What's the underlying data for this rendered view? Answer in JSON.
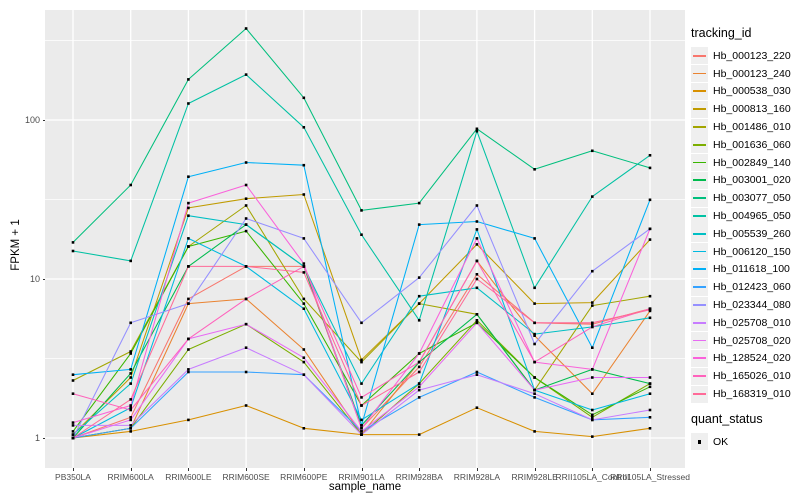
{
  "labels": {
    "y_axis_title": "FPKM + 1",
    "x_axis_title": "sample_name",
    "tracking_legend_title": "tracking_id",
    "quant_legend_title": "quant_status",
    "quant_status_value": "OK"
  },
  "colors": {
    "panel_bg": "#EBEBEB",
    "grid": "#FFFFFF",
    "axis_text": "#4D4D4D",
    "tick_mark": "#333333",
    "point": "#000000",
    "legend_key_bg": "#EFEFEF"
  },
  "chart_data": {
    "type": "line",
    "title": "",
    "xlabel": "sample_name",
    "ylabel": "FPKM + 1",
    "y_scale": "log10",
    "ylim": [
      1,
      470
    ],
    "y_ticks": [
      1,
      10,
      100
    ],
    "y_tick_labels": [
      "1",
      "10",
      "100"
    ],
    "y_minor_gridlines": [
      3.162,
      31.62,
      316.2
    ],
    "grid": "on",
    "legend_position": "right",
    "point_marker": "black-square",
    "categories": [
      "PB350LA",
      "RRIM600LA",
      "RRIM600LE",
      "RRIM600SE",
      "RRIM600PE",
      "RRIM901LA",
      "RRIM928BA",
      "RRIM928LA",
      "RRIM928LE",
      "RRII105LA_Control",
      "RRII105LA_Stressed"
    ],
    "series": [
      {
        "name": "Hb_000123_220",
        "color": "#F8766D",
        "values": [
          1.0,
          1.35,
          7.5,
          12,
          12,
          1.15,
          2.8,
          10.7,
          5.3,
          5.2,
          6.5
        ]
      },
      {
        "name": "Hb_000123_240",
        "color": "#EA8331",
        "values": [
          1.0,
          1.15,
          7.0,
          7.5,
          3.6,
          1.05,
          3.0,
          13,
          4.4,
          1.9,
          6.3
        ]
      },
      {
        "name": "Hb_000538_030",
        "color": "#D89000",
        "values": [
          1.0,
          1.1,
          1.3,
          1.6,
          1.15,
          1.05,
          1.05,
          1.55,
          1.1,
          1.02,
          1.15
        ]
      },
      {
        "name": "Hb_000813_160",
        "color": "#C09B00",
        "values": [
          1.05,
          2.4,
          28,
          32,
          34,
          3.1,
          7.0,
          16.5,
          7.0,
          7.1,
          17.7
        ]
      },
      {
        "name": "Hb_001486_010",
        "color": "#A3A500",
        "values": [
          2.3,
          3.5,
          16,
          29,
          7.5,
          3.0,
          7.0,
          6.0,
          2.0,
          6.8,
          7.8
        ]
      },
      {
        "name": "Hb_001636_060",
        "color": "#7CAE00",
        "values": [
          1.0,
          1.15,
          3.6,
          5.2,
          3.0,
          1.05,
          2.2,
          5.5,
          2.4,
          1.35,
          2.2
        ]
      },
      {
        "name": "Hb_002849_140",
        "color": "#39B600",
        "values": [
          1.1,
          3.4,
          16,
          20,
          7.0,
          1.6,
          3.4,
          5.3,
          2.4,
          1.4,
          2.1
        ]
      },
      {
        "name": "Hb_003001_020",
        "color": "#00BB4E",
        "values": [
          1.0,
          2.55,
          12,
          22,
          12,
          1.2,
          3.0,
          6.0,
          2.0,
          2.7,
          2.2
        ]
      },
      {
        "name": "Hb_003077_050",
        "color": "#00BF7D",
        "values": [
          17,
          39,
          180,
          376,
          138,
          27,
          30,
          88,
          49,
          64,
          50
        ]
      },
      {
        "name": "Hb_004965_050",
        "color": "#00C1A3",
        "values": [
          15,
          13,
          127,
          193,
          90,
          19,
          5.5,
          85,
          8.8,
          33,
          60
        ]
      },
      {
        "name": "Hb_005539_260",
        "color": "#00BFC4",
        "values": [
          1.05,
          2.2,
          25,
          22,
          12,
          2.2,
          7.8,
          8.8,
          4.5,
          5.0,
          5.7
        ]
      },
      {
        "name": "Hb_006120_150",
        "color": "#00BAE0",
        "values": [
          1.0,
          1.55,
          18,
          12,
          6.5,
          1.3,
          2.2,
          20.5,
          2.0,
          1.5,
          1.9
        ]
      },
      {
        "name": "Hb_011618_100",
        "color": "#00B0F6",
        "values": [
          2.5,
          2.7,
          44,
          54,
          52,
          1.2,
          22,
          23,
          18,
          3.7,
          31.5
        ]
      },
      {
        "name": "Hb_012423_060",
        "color": "#35A2FF",
        "values": [
          1.0,
          1.15,
          2.6,
          2.6,
          2.5,
          1.1,
          1.8,
          2.6,
          1.8,
          1.3,
          1.35
        ]
      },
      {
        "name": "Hb_023344_080",
        "color": "#9590FF",
        "values": [
          1.0,
          5.3,
          7.0,
          24,
          18,
          5.3,
          10.2,
          29,
          3.9,
          11.2,
          20.7
        ]
      },
      {
        "name": "Hb_025708_010",
        "color": "#C77CFF",
        "values": [
          1.2,
          1.2,
          2.7,
          3.7,
          2.5,
          1.05,
          2.0,
          2.5,
          1.9,
          1.3,
          1.5
        ]
      },
      {
        "name": "Hb_025708_020",
        "color": "#E76BF3",
        "values": [
          1.0,
          1.3,
          4.2,
          5.2,
          3.2,
          1.1,
          2.1,
          5.3,
          2.0,
          2.4,
          2.4
        ]
      },
      {
        "name": "Hb_128524_020",
        "color": "#FA62DB",
        "values": [
          1.25,
          1.6,
          30,
          39,
          12.5,
          1.15,
          3.4,
          18,
          3.0,
          2.7,
          20.7
        ]
      },
      {
        "name": "Hb_165026_010",
        "color": "#FF62BC",
        "values": [
          1.9,
          1.5,
          4.2,
          7.5,
          12,
          1.8,
          3.0,
          13,
          3.0,
          5.0,
          6.5
        ]
      },
      {
        "name": "Hb_168319_010",
        "color": "#FF6A98",
        "values": [
          1.0,
          1.75,
          12,
          12,
          11,
          1.6,
          2.6,
          10,
          5.3,
          5.3,
          6.4
        ]
      }
    ],
    "quant_status_legend": {
      "title": "quant_status",
      "items": [
        "OK"
      ]
    }
  }
}
